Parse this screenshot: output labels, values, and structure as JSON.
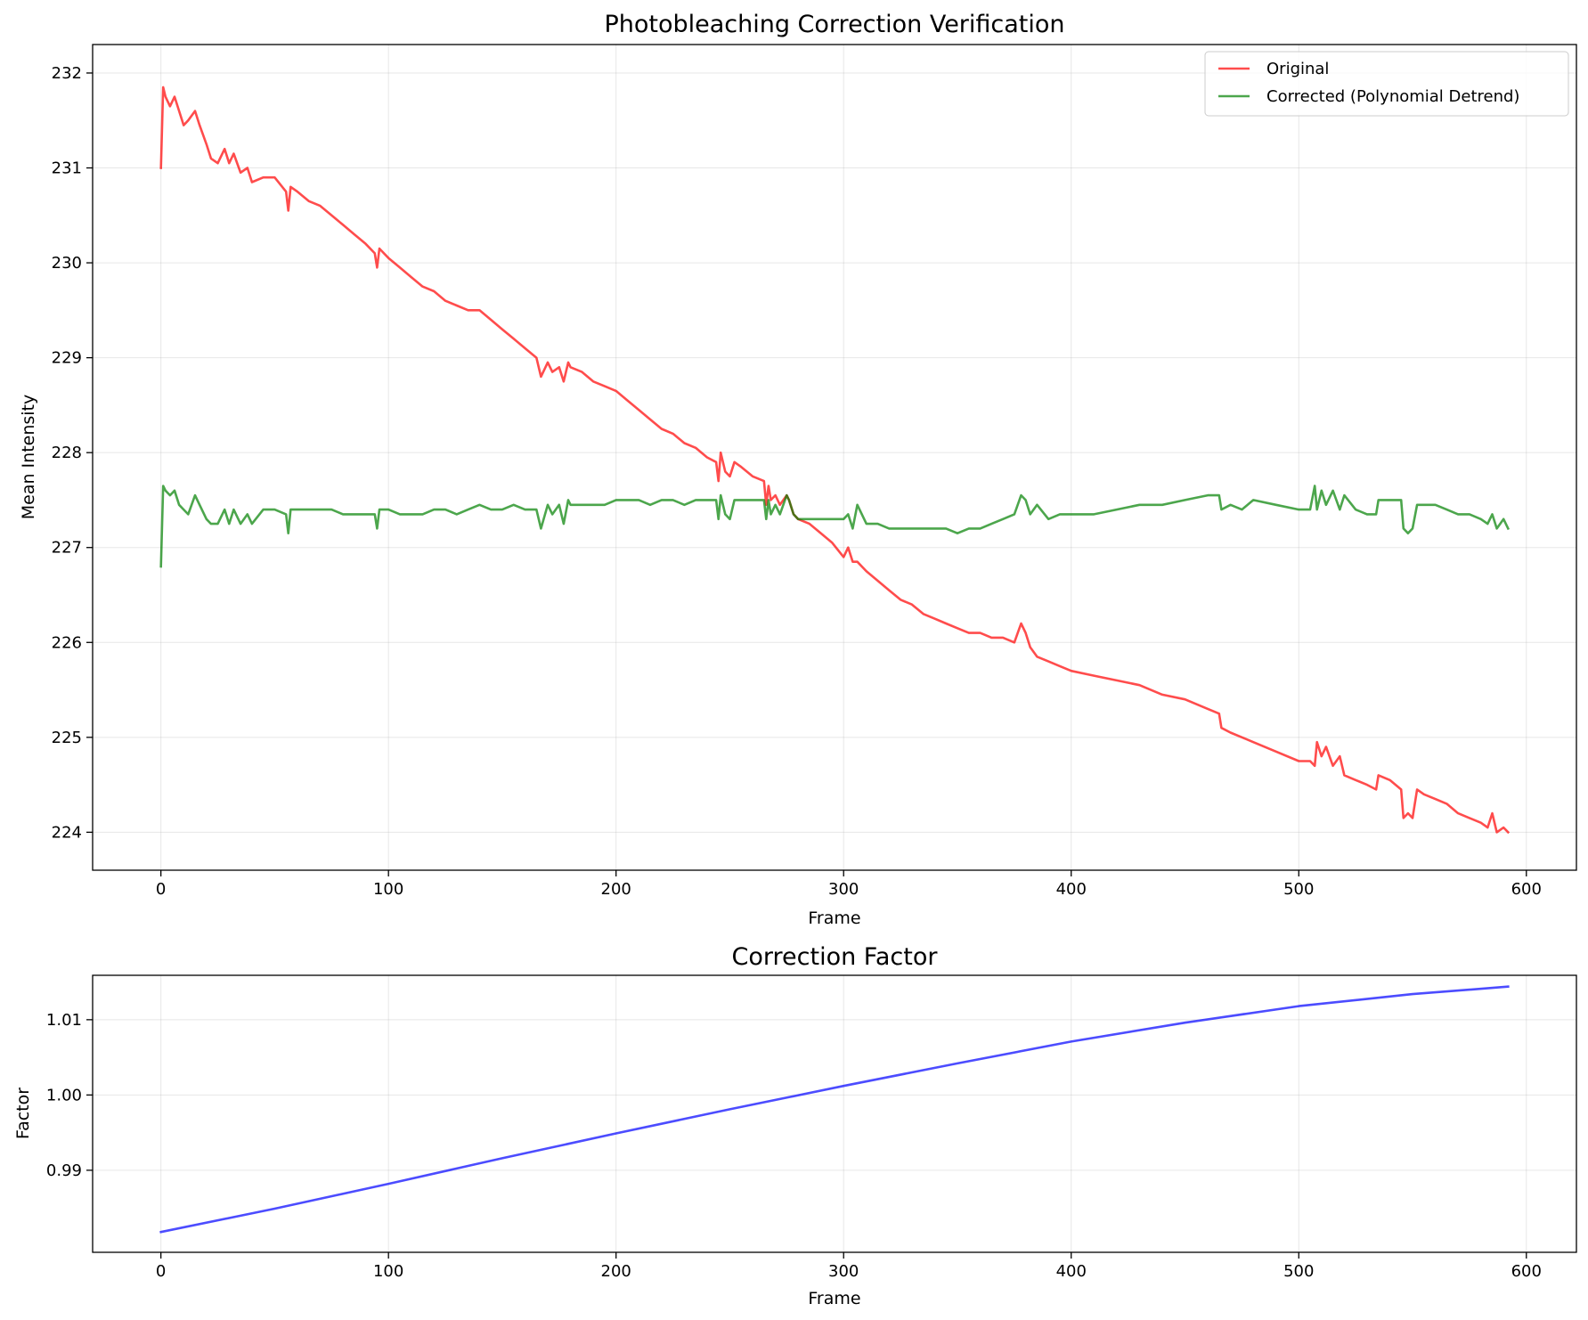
{
  "chart_data": [
    {
      "type": "line",
      "title": "Photobleaching Correction Verification",
      "xlabel": "Frame",
      "ylabel": "Mean Intensity",
      "xlim": [
        -30,
        622
      ],
      "ylim": [
        223.6,
        232.3
      ],
      "xticks": [
        0,
        100,
        200,
        300,
        400,
        500,
        600
      ],
      "yticks": [
        224,
        225,
        226,
        227,
        228,
        229,
        230,
        231,
        232
      ],
      "grid": true,
      "legend": "top-right",
      "series": [
        {
          "name": "Original",
          "color": "#ff0000",
          "x": [
            0,
            1,
            2,
            4,
            6,
            8,
            10,
            12,
            15,
            17,
            20,
            22,
            25,
            28,
            30,
            32,
            35,
            38,
            40,
            45,
            50,
            55,
            56,
            57,
            60,
            65,
            70,
            75,
            80,
            85,
            90,
            94,
            95,
            96,
            100,
            105,
            110,
            115,
            120,
            125,
            130,
            135,
            140,
            145,
            150,
            155,
            160,
            165,
            167,
            170,
            172,
            175,
            177,
            179,
            180,
            185,
            190,
            195,
            200,
            205,
            210,
            215,
            220,
            225,
            230,
            235,
            240,
            244,
            245,
            246,
            248,
            250,
            252,
            255,
            260,
            265,
            266,
            267,
            268,
            270,
            272,
            275,
            276,
            278,
            280,
            285,
            290,
            295,
            300,
            302,
            304,
            306,
            310,
            315,
            320,
            325,
            330,
            335,
            340,
            345,
            350,
            355,
            360,
            365,
            370,
            375,
            378,
            380,
            382,
            385,
            390,
            395,
            400,
            410,
            420,
            430,
            440,
            450,
            460,
            465,
            466,
            470,
            475,
            480,
            490,
            500,
            505,
            507,
            508,
            510,
            512,
            515,
            518,
            520,
            525,
            530,
            534,
            535,
            540,
            545,
            546,
            548,
            550,
            552,
            555,
            560,
            565,
            570,
            575,
            580,
            583,
            585,
            587,
            590,
            592
          ],
          "y": [
            231.0,
            231.85,
            231.75,
            231.65,
            231.75,
            231.6,
            231.45,
            231.5,
            231.6,
            231.45,
            231.25,
            231.1,
            231.05,
            231.2,
            231.05,
            231.15,
            230.95,
            231.0,
            230.85,
            230.9,
            230.9,
            230.75,
            230.55,
            230.8,
            230.75,
            230.65,
            230.6,
            230.5,
            230.4,
            230.3,
            230.2,
            230.1,
            229.95,
            230.15,
            230.05,
            229.95,
            229.85,
            229.75,
            229.7,
            229.6,
            229.55,
            229.5,
            229.5,
            229.4,
            229.3,
            229.2,
            229.1,
            229.0,
            228.8,
            228.95,
            228.85,
            228.9,
            228.75,
            228.95,
            228.9,
            228.85,
            228.75,
            228.7,
            228.65,
            228.55,
            228.45,
            228.35,
            228.25,
            228.2,
            228.1,
            228.05,
            227.95,
            227.9,
            227.7,
            228.0,
            227.8,
            227.75,
            227.9,
            227.85,
            227.75,
            227.7,
            227.45,
            227.65,
            227.5,
            227.55,
            227.45,
            227.55,
            227.5,
            227.35,
            227.3,
            227.25,
            227.15,
            227.05,
            226.9,
            227.0,
            226.85,
            226.85,
            226.75,
            226.65,
            226.55,
            226.45,
            226.4,
            226.3,
            226.25,
            226.2,
            226.15,
            226.1,
            226.1,
            226.05,
            226.05,
            226.0,
            226.2,
            226.1,
            225.95,
            225.85,
            225.8,
            225.75,
            225.7,
            225.65,
            225.6,
            225.55,
            225.45,
            225.4,
            225.3,
            225.25,
            225.1,
            225.05,
            225.0,
            224.95,
            224.85,
            224.75,
            224.75,
            224.7,
            224.95,
            224.8,
            224.9,
            224.7,
            224.8,
            224.6,
            224.55,
            224.5,
            224.45,
            224.6,
            224.55,
            224.45,
            224.15,
            224.2,
            224.15,
            224.45,
            224.4,
            224.35,
            224.3,
            224.2,
            224.15,
            224.1,
            224.05,
            224.2,
            224.0,
            224.05,
            224.0
          ]
        },
        {
          "name": "Corrected (Polynomial Detrend)",
          "color": "#008000",
          "x": [
            0,
            1,
            2,
            4,
            6,
            8,
            10,
            12,
            15,
            17,
            20,
            22,
            25,
            28,
            30,
            32,
            35,
            38,
            40,
            45,
            50,
            55,
            56,
            57,
            60,
            65,
            70,
            75,
            80,
            85,
            90,
            94,
            95,
            96,
            100,
            105,
            110,
            115,
            120,
            125,
            130,
            135,
            140,
            145,
            150,
            155,
            160,
            165,
            167,
            170,
            172,
            175,
            177,
            179,
            180,
            185,
            190,
            195,
            200,
            205,
            210,
            215,
            220,
            225,
            230,
            235,
            240,
            244,
            245,
            246,
            248,
            250,
            252,
            255,
            260,
            265,
            266,
            267,
            268,
            270,
            272,
            275,
            276,
            278,
            280,
            285,
            290,
            295,
            300,
            302,
            304,
            306,
            310,
            315,
            320,
            325,
            330,
            335,
            340,
            345,
            350,
            355,
            360,
            365,
            370,
            375,
            378,
            380,
            382,
            385,
            390,
            395,
            400,
            410,
            420,
            430,
            440,
            450,
            460,
            465,
            466,
            470,
            475,
            480,
            490,
            500,
            505,
            507,
            508,
            510,
            512,
            515,
            518,
            520,
            525,
            530,
            534,
            535,
            540,
            545,
            546,
            548,
            550,
            552,
            555,
            560,
            565,
            570,
            575,
            580,
            583,
            585,
            587,
            590,
            592
          ],
          "y": [
            226.8,
            227.65,
            227.6,
            227.55,
            227.6,
            227.45,
            227.4,
            227.35,
            227.55,
            227.45,
            227.3,
            227.25,
            227.25,
            227.4,
            227.25,
            227.4,
            227.25,
            227.35,
            227.25,
            227.4,
            227.4,
            227.35,
            227.15,
            227.4,
            227.4,
            227.4,
            227.4,
            227.4,
            227.35,
            227.35,
            227.35,
            227.35,
            227.2,
            227.4,
            227.4,
            227.35,
            227.35,
            227.35,
            227.4,
            227.4,
            227.35,
            227.4,
            227.45,
            227.4,
            227.4,
            227.45,
            227.4,
            227.4,
            227.2,
            227.45,
            227.35,
            227.45,
            227.25,
            227.5,
            227.45,
            227.45,
            227.45,
            227.45,
            227.5,
            227.5,
            227.5,
            227.45,
            227.5,
            227.5,
            227.45,
            227.5,
            227.5,
            227.5,
            227.3,
            227.55,
            227.35,
            227.3,
            227.5,
            227.5,
            227.5,
            227.5,
            227.3,
            227.5,
            227.35,
            227.45,
            227.35,
            227.55,
            227.5,
            227.35,
            227.3,
            227.3,
            227.3,
            227.3,
            227.3,
            227.35,
            227.2,
            227.45,
            227.25,
            227.25,
            227.2,
            227.2,
            227.2,
            227.2,
            227.2,
            227.2,
            227.15,
            227.2,
            227.2,
            227.25,
            227.3,
            227.35,
            227.55,
            227.5,
            227.35,
            227.45,
            227.3,
            227.35,
            227.35,
            227.35,
            227.4,
            227.45,
            227.45,
            227.5,
            227.55,
            227.55,
            227.4,
            227.45,
            227.4,
            227.5,
            227.45,
            227.4,
            227.4,
            227.65,
            227.4,
            227.6,
            227.45,
            227.6,
            227.4,
            227.55,
            227.4,
            227.35,
            227.35,
            227.5,
            227.5,
            227.5,
            227.2,
            227.15,
            227.2,
            227.45,
            227.45,
            227.45,
            227.4,
            227.35,
            227.35,
            227.3,
            227.25,
            227.35,
            227.2,
            227.3,
            227.2
          ]
        }
      ]
    },
    {
      "type": "line",
      "title": "Correction Factor",
      "xlabel": "Frame",
      "ylabel": "Factor",
      "xlim": [
        -30,
        622
      ],
      "ylim": [
        0.9791,
        1.0159
      ],
      "xticks": [
        0,
        100,
        200,
        300,
        400,
        500,
        600
      ],
      "yticks": [
        0.99,
        1.0,
        1.01
      ],
      "ytick_labels": [
        "0.99",
        "1.00",
        "1.01"
      ],
      "grid": true,
      "series": [
        {
          "color": "#0000ff",
          "x": [
            0,
            50,
            100,
            150,
            200,
            250,
            300,
            350,
            400,
            450,
            500,
            550,
            592
          ],
          "y": [
            0.9818,
            0.9849,
            0.9882,
            0.9916,
            0.9949,
            0.9981,
            1.0012,
            1.0042,
            1.0071,
            1.0096,
            1.0118,
            1.0134,
            1.0144
          ]
        }
      ]
    }
  ]
}
